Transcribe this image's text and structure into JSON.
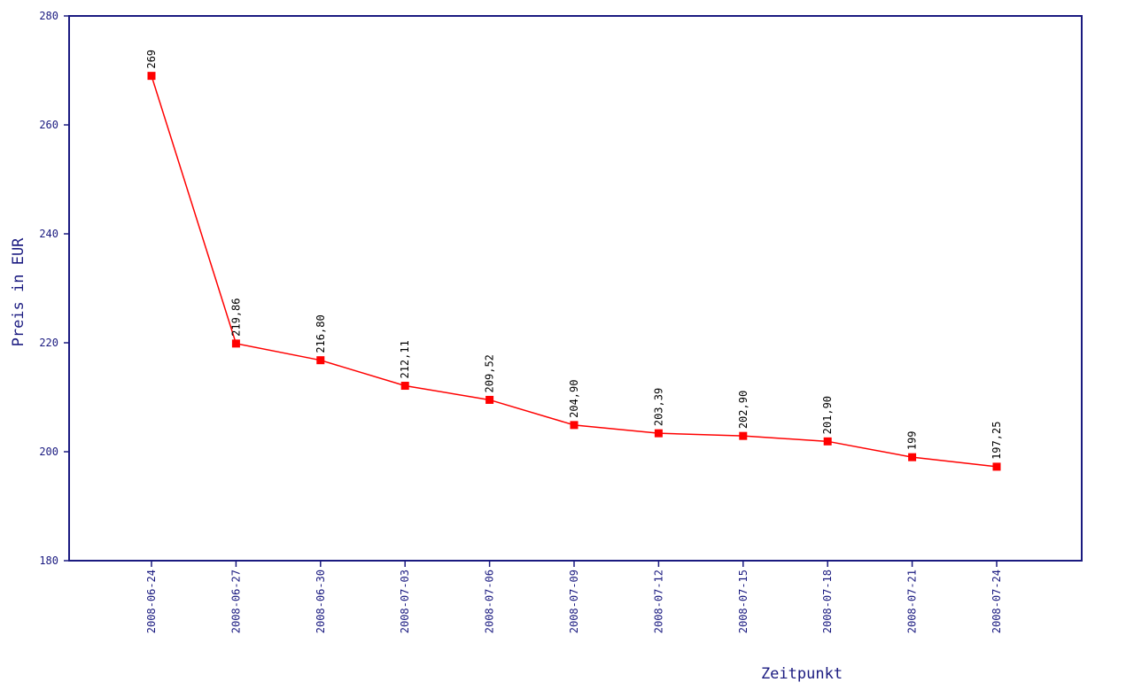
{
  "chart_data": {
    "type": "line",
    "xlabel": "Zeitpunkt",
    "ylabel": "Preis in EUR",
    "ylim": [
      180,
      280
    ],
    "yticks": [
      "180",
      "200",
      "220",
      "240",
      "260",
      "280"
    ],
    "grid": false,
    "categories": [
      "2008-06-24",
      "2008-06-27",
      "2008-06-30",
      "2008-07-03",
      "2008-07-06",
      "2008-07-09",
      "2008-07-12",
      "2008-07-15",
      "2008-07-18",
      "2008-07-21",
      "2008-07-24"
    ],
    "series": [
      {
        "values": [
          269,
          219.86,
          216.8,
          212.11,
          209.52,
          204.9,
          203.39,
          202.9,
          201.9,
          199,
          197.25
        ],
        "labels": [
          "269",
          "219,86",
          "216,80",
          "212,11",
          "209,52",
          "204,90",
          "203,39",
          "202,90",
          "201,90",
          "199",
          "197,25"
        ],
        "color": "#ff0000"
      }
    ],
    "axis_color": "#1a1a80"
  }
}
